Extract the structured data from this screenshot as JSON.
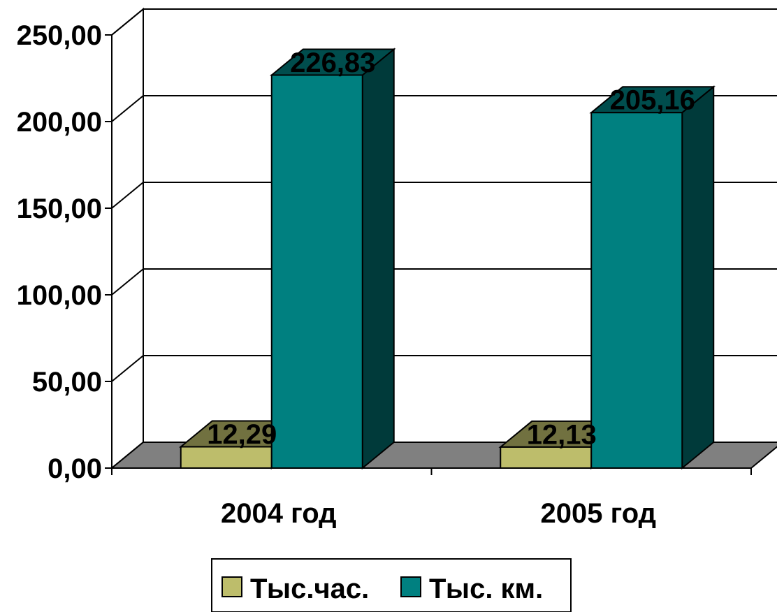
{
  "chart_data": {
    "type": "bar",
    "style": "3d-clustered-column",
    "categories": [
      "2004 год",
      "2005 год"
    ],
    "series": [
      {
        "name": "Тыс.час.",
        "values": [
          12.29,
          12.13
        ],
        "data_labels": [
          "12,29",
          "12,13"
        ],
        "color": "#BDBD6B"
      },
      {
        "name": "Тыс. км.",
        "values": [
          226.83,
          205.16
        ],
        "data_labels": [
          "226,83",
          "205,16"
        ],
        "color": "#008080"
      }
    ],
    "yticks": [
      0,
      50,
      100,
      150,
      200,
      250
    ],
    "ytick_labels": [
      "0,00",
      "50,00",
      "100,00",
      "150,00",
      "200,00",
      "250,00"
    ],
    "ylim": [
      0,
      250
    ],
    "grid": true,
    "legend_position": "bottom",
    "title": "",
    "xlabel": "",
    "ylabel": ""
  }
}
